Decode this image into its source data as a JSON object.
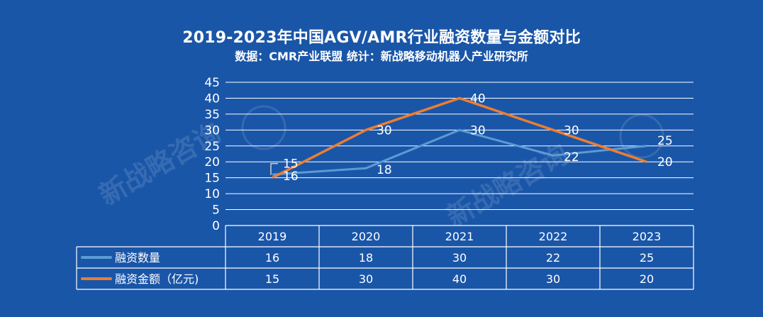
{
  "chart_data": {
    "type": "line",
    "title": "2019-2023年中国AGV/AMR行业融资数量与金额对比",
    "subtitle": "数据：CMR产业联盟  统计：新战略移动机器人产业研究所",
    "categories": [
      "2019",
      "2020",
      "2021",
      "2022",
      "2023"
    ],
    "series": [
      {
        "name": "融资数量",
        "values": [
          16,
          18,
          30,
          22,
          25
        ],
        "color": "#5b9bd5"
      },
      {
        "name": "融资金额（亿元)",
        "values": [
          15,
          30,
          40,
          30,
          20
        ],
        "color": "#ed7d31"
      }
    ],
    "ylim": [
      0,
      45
    ],
    "yticks": [
      0,
      5,
      10,
      15,
      20,
      25,
      30,
      35,
      40,
      45
    ],
    "grid": true,
    "legend": "data-table",
    "watermark": "新战略咨询"
  }
}
